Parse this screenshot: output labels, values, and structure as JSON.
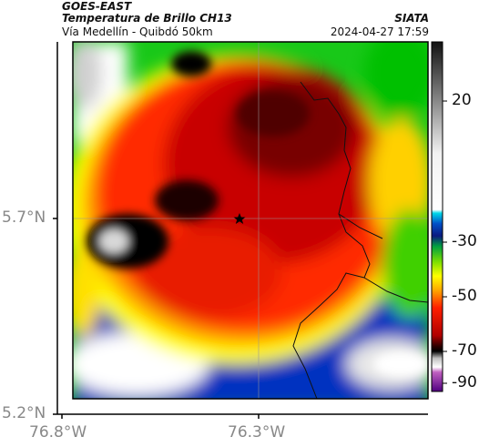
{
  "header": {
    "satellite": "GOES-EAST",
    "product": "Temperatura de Brillo CH13",
    "region": "Vía Medellín - Quibdó 50km",
    "source": "SIATA",
    "datetime": "2024-04-27 17:59"
  },
  "axes": {
    "x_ticks": [
      "76.8°W",
      "76.3°W"
    ],
    "y_ticks": [
      "5.7°N",
      "5.2°N"
    ]
  },
  "colorbar": {
    "labels": [
      "20",
      "-30",
      "-50",
      "-70",
      "-90"
    ]
  },
  "marker": {
    "name": "star"
  }
}
